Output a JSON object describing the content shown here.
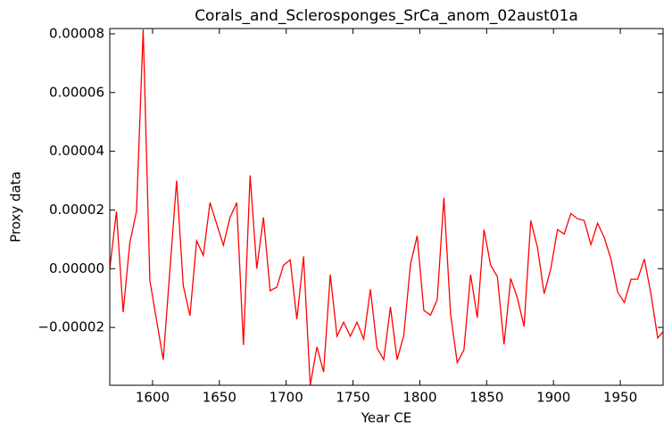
{
  "chart_data": {
    "type": "line",
    "title": "Corals_and_Sclerosponges_SrCa_anom_02aust01a",
    "x_label": "Year CE",
    "y_label": "Proxy data",
    "x": [
      1568,
      1573,
      1578,
      1583,
      1588,
      1593,
      1598,
      1608,
      1618,
      1623,
      1628,
      1633,
      1638,
      1643,
      1653,
      1658,
      1663,
      1668,
      1673,
      1678,
      1683,
      1688,
      1693,
      1698,
      1703,
      1708,
      1713,
      1718,
      1723,
      1728,
      1733,
      1738,
      1743,
      1748,
      1753,
      1758,
      1763,
      1768,
      1773,
      1778,
      1783,
      1788,
      1793,
      1798,
      1803,
      1808,
      1813,
      1818,
      1823,
      1828,
      1833,
      1838,
      1843,
      1848,
      1853,
      1858,
      1863,
      1868,
      1873,
      1878,
      1883,
      1888,
      1893,
      1898,
      1903,
      1908,
      1913,
      1918,
      1923,
      1928,
      1933,
      1938,
      1943,
      1948,
      1953,
      1958,
      1963,
      1968,
      1973,
      1978,
      1982
    ],
    "series": [
      {
        "name": "Proxy data",
        "color": "#ff0000",
        "values": [
          0,
          1.95e-05,
          -1.48e-05,
          8.8e-06,
          1.95e-05,
          8.15e-05,
          -4e-06,
          -3.1e-05,
          3e-05,
          -5.8e-06,
          -1.6e-05,
          9.5e-06,
          4.5e-06,
          2.25e-05,
          8e-06,
          1.75e-05,
          2.25e-05,
          -2.6e-05,
          3.18e-05,
          0,
          1.75e-05,
          -7.5e-06,
          -6.3e-06,
          1.2e-06,
          3e-06,
          -1.72e-05,
          4.2e-06,
          -3.97e-05,
          -2.66e-05,
          -3.52e-05,
          -2e-06,
          -2.3e-05,
          -1.82e-05,
          -2.3e-05,
          -1.82e-05,
          -2.4e-05,
          -7e-06,
          -2.7e-05,
          -3.1e-05,
          -1.3e-05,
          -3.1e-05,
          -2.27e-05,
          1.5e-06,
          1.12e-05,
          -1.42e-05,
          -1.58e-05,
          -1.06e-05,
          2.42e-05,
          -1.55e-05,
          -3.2e-05,
          -2.76e-05,
          -2e-06,
          -1.67e-05,
          1.33e-05,
          1.2e-06,
          -2.7e-06,
          -2.58e-05,
          -3.3e-06,
          -1e-05,
          -1.97e-05,
          1.64e-05,
          7.3e-06,
          -8.5e-06,
          0,
          1.33e-05,
          1.18e-05,
          1.88e-05,
          1.7e-05,
          1.64e-05,
          8.2e-06,
          1.55e-05,
          1.06e-05,
          3.3e-06,
          -7.9e-06,
          -1.15e-05,
          -3.6e-06,
          -3.6e-06,
          3.3e-06,
          -8.8e-06,
          -2.36e-05,
          -2.15e-05
        ]
      }
    ],
    "xlim": [
      1568,
      1982
    ],
    "ylim": [
      -3.97e-05,
      8.18e-05
    ],
    "xticks": [
      1600,
      1650,
      1700,
      1750,
      1800,
      1850,
      1900,
      1950
    ],
    "yticks": [
      {
        "value": -2e-05,
        "label": "−0.00002"
      },
      {
        "value": 0,
        "label": "0.00000"
      },
      {
        "value": 2e-05,
        "label": "0.00002"
      },
      {
        "value": 4e-05,
        "label": "0.00004"
      },
      {
        "value": 6e-05,
        "label": "0.00006"
      },
      {
        "value": 8e-05,
        "label": "0.00008"
      }
    ]
  }
}
